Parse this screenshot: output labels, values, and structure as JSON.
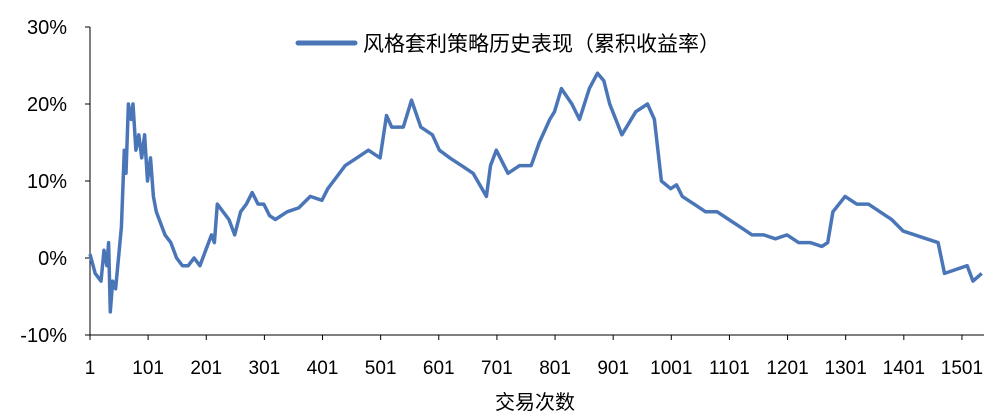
{
  "chart_data": {
    "type": "line",
    "title": "",
    "xlabel": "交易次数",
    "ylabel": "",
    "ylim": [
      -10,
      30
    ],
    "xlim": [
      1,
      1535
    ],
    "grid": false,
    "legend_position": "top-center",
    "y_ticks": [
      -10,
      0,
      10,
      20,
      30
    ],
    "y_tick_labels": [
      "-10%",
      "0%",
      "10%",
      "20%",
      "30%"
    ],
    "x_ticks": [
      1,
      101,
      201,
      301,
      401,
      501,
      601,
      701,
      801,
      901,
      1001,
      1101,
      1201,
      1301,
      1401,
      1501
    ],
    "x_tick_labels": [
      "1",
      "101",
      "201",
      "301",
      "401",
      "501",
      "601",
      "701",
      "801",
      "901",
      "1001",
      "1101",
      "1201",
      "1301",
      "1401",
      "1501"
    ],
    "series": [
      {
        "name": "风格套利策略历史表现（累积收益率）",
        "color": "#4a76b8",
        "x": [
          1,
          10,
          20,
          25,
          30,
          33,
          36,
          40,
          45,
          55,
          60,
          63,
          67,
          72,
          75,
          80,
          85,
          90,
          95,
          100,
          105,
          110,
          115,
          120,
          130,
          140,
          150,
          160,
          170,
          180,
          190,
          200,
          210,
          215,
          220,
          230,
          240,
          250,
          260,
          270,
          280,
          290,
          300,
          310,
          320,
          340,
          360,
          380,
          400,
          410,
          420,
          440,
          460,
          480,
          500,
          511,
          520,
          540,
          554,
          570,
          590,
          602,
          620,
          640,
          660,
          683,
          690,
          700,
          720,
          740,
          760,
          774,
          792,
          800,
          812,
          830,
          843,
          860,
          874,
          885,
          895,
          916,
          940,
          960,
          972,
          984,
          1000,
          1010,
          1020,
          1040,
          1060,
          1080,
          1100,
          1120,
          1140,
          1160,
          1180,
          1200,
          1220,
          1240,
          1260,
          1270,
          1279,
          1300,
          1320,
          1340,
          1360,
          1380,
          1400,
          1420,
          1440,
          1460,
          1471,
          1490,
          1510,
          1520,
          1535
        ],
        "y": [
          0.5,
          -2,
          -3,
          1,
          -1,
          2,
          -7,
          -3,
          -4,
          4,
          14,
          11,
          20,
          18,
          20,
          14,
          16,
          13,
          16,
          10,
          13,
          8,
          6,
          5,
          3,
          2,
          0,
          -1,
          -1,
          0,
          -1,
          1,
          3,
          2,
          7,
          6,
          5,
          3,
          6,
          7,
          8.5,
          7,
          7,
          5.5,
          5,
          6,
          6.5,
          8,
          7.5,
          9,
          10,
          12,
          13,
          14,
          13,
          18.5,
          17,
          17,
          20.5,
          17,
          16,
          14,
          13,
          12,
          11,
          8,
          12,
          14,
          11,
          12,
          12,
          15,
          18,
          19,
          22,
          20,
          18,
          22,
          24,
          23,
          20,
          16,
          19,
          20,
          18,
          10,
          9,
          9.5,
          8,
          7,
          6,
          6,
          5,
          4,
          3,
          3,
          2.5,
          3,
          2,
          2,
          1.5,
          2,
          6,
          8,
          7,
          7,
          6,
          5,
          3.5,
          3,
          2.5,
          2,
          -2,
          -1.5,
          -1,
          -3,
          -2
        ]
      }
    ]
  }
}
